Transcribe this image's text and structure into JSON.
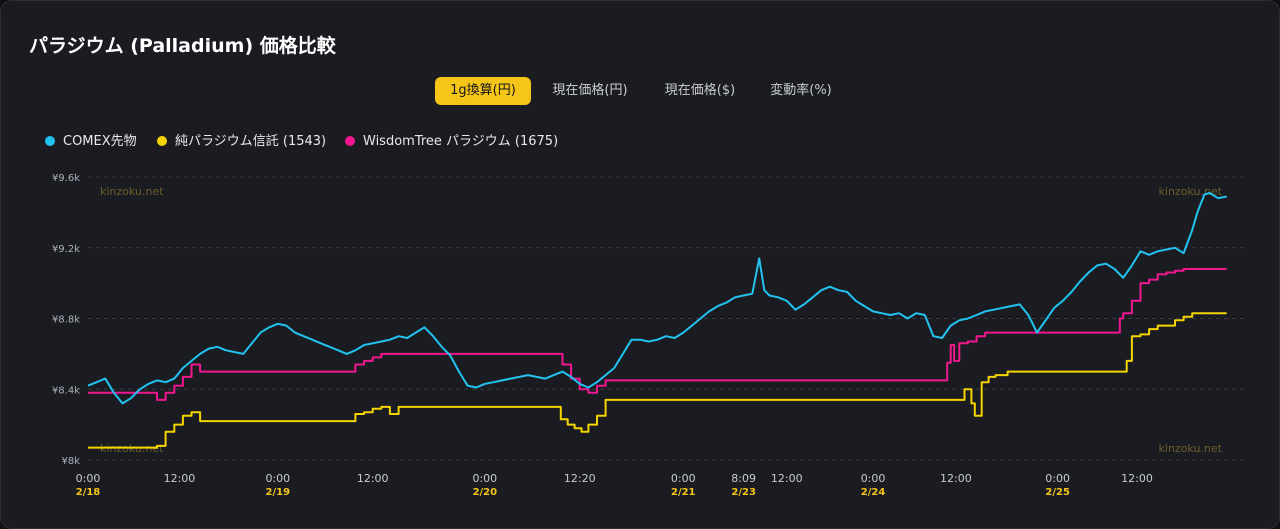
{
  "title": "パラジウム (Palladium) 価格比較",
  "tabs": [
    {
      "label": "1g換算(円)",
      "active": true
    },
    {
      "label": "現在価格(円)",
      "active": false
    },
    {
      "label": "現在価格($)",
      "active": false
    },
    {
      "label": "変動率(%)",
      "active": false
    }
  ],
  "watermark": "kinzoku.net",
  "colors": {
    "accent": "#f5c518",
    "comex": "#22c3f0",
    "trust": "#f5d400",
    "wisdomtree": "#f0178f"
  },
  "chart_data": {
    "type": "line",
    "ylim": [
      8000,
      9600
    ],
    "y_ticks": [
      "¥9.6k",
      "¥9.2k",
      "¥8.8k",
      "¥8.4k",
      "¥8k"
    ],
    "y_tick_values": [
      9600,
      9200,
      8800,
      8400,
      8000
    ],
    "x_ticks": [
      {
        "label": "0:00",
        "date": "2/18"
      },
      {
        "label": "12:00",
        "date": ""
      },
      {
        "label": "0:00",
        "date": "2/19"
      },
      {
        "label": "12:00",
        "date": ""
      },
      {
        "label": "0:00",
        "date": "2/20"
      },
      {
        "label": "12:20",
        "date": ""
      },
      {
        "label": "0:00",
        "date": "2/21"
      },
      {
        "label": "8:09",
        "date": "2/23"
      },
      {
        "label": "12:00",
        "date": ""
      },
      {
        "label": "0:00",
        "date": "2/24"
      },
      {
        "label": "12:00",
        "date": ""
      },
      {
        "label": "0:00",
        "date": "2/25"
      },
      {
        "label": "12:00",
        "date": ""
      }
    ],
    "x_tick_index": [
      0,
      5.3,
      11,
      16.5,
      23,
      28.5,
      34.5,
      38,
      40.5,
      45.5,
      50.3,
      56.2,
      60.8
    ],
    "x_range": [
      0,
      67
    ],
    "series": [
      {
        "name": "COMEX先物",
        "points": [
          [
            0,
            8420
          ],
          [
            0.5,
            8440
          ],
          [
            1,
            8460
          ],
          [
            1.5,
            8380
          ],
          [
            2,
            8320
          ],
          [
            2.5,
            8350
          ],
          [
            3,
            8400
          ],
          [
            3.5,
            8430
          ],
          [
            4,
            8450
          ],
          [
            4.5,
            8440
          ],
          [
            5,
            8460
          ],
          [
            5.5,
            8520
          ],
          [
            6,
            8560
          ],
          [
            6.5,
            8600
          ],
          [
            7,
            8630
          ],
          [
            7.5,
            8640
          ],
          [
            8,
            8620
          ],
          [
            8.5,
            8610
          ],
          [
            9,
            8600
          ],
          [
            9.5,
            8660
          ],
          [
            10,
            8720
          ],
          [
            10.5,
            8750
          ],
          [
            11,
            8770
          ],
          [
            11.5,
            8760
          ],
          [
            12,
            8720
          ],
          [
            12.5,
            8700
          ],
          [
            13,
            8680
          ],
          [
            13.5,
            8660
          ],
          [
            14,
            8640
          ],
          [
            14.5,
            8620
          ],
          [
            15,
            8600
          ],
          [
            15.5,
            8620
          ],
          [
            16,
            8650
          ],
          [
            16.5,
            8660
          ],
          [
            17,
            8670
          ],
          [
            17.5,
            8680
          ],
          [
            18,
            8700
          ],
          [
            18.5,
            8690
          ],
          [
            19,
            8720
          ],
          [
            19.5,
            8750
          ],
          [
            20,
            8700
          ],
          [
            20.5,
            8640
          ],
          [
            21,
            8590
          ],
          [
            21.5,
            8500
          ],
          [
            22,
            8420
          ],
          [
            22.5,
            8410
          ],
          [
            23,
            8430
          ],
          [
            23.5,
            8440
          ],
          [
            24,
            8450
          ],
          [
            24.5,
            8460
          ],
          [
            25,
            8470
          ],
          [
            25.5,
            8480
          ],
          [
            26,
            8470
          ],
          [
            26.5,
            8460
          ],
          [
            27,
            8480
          ],
          [
            27.5,
            8500
          ],
          [
            28,
            8470
          ],
          [
            28.5,
            8430
          ],
          [
            29,
            8410
          ],
          [
            29.5,
            8440
          ],
          [
            30,
            8480
          ],
          [
            30.5,
            8520
          ],
          [
            31,
            8600
          ],
          [
            31.5,
            8680
          ],
          [
            32,
            8680
          ],
          [
            32.5,
            8670
          ],
          [
            33,
            8680
          ],
          [
            33.5,
            8700
          ],
          [
            34,
            8690
          ],
          [
            34.5,
            8720
          ],
          [
            35,
            8760
          ],
          [
            35.5,
            8800
          ],
          [
            36,
            8840
          ],
          [
            36.5,
            8870
          ],
          [
            37,
            8890
          ],
          [
            37.5,
            8920
          ],
          [
            38,
            8930
          ],
          [
            38.5,
            8940
          ],
          [
            38.9,
            9140
          ],
          [
            39.2,
            8960
          ],
          [
            39.5,
            8930
          ],
          [
            40,
            8920
          ],
          [
            40.5,
            8900
          ],
          [
            41,
            8850
          ],
          [
            41.5,
            8880
          ],
          [
            42,
            8920
          ],
          [
            42.5,
            8960
          ],
          [
            43,
            8980
          ],
          [
            43.5,
            8960
          ],
          [
            44,
            8950
          ],
          [
            44.5,
            8900
          ],
          [
            45,
            8870
          ],
          [
            45.5,
            8840
          ],
          [
            46,
            8830
          ],
          [
            46.5,
            8820
          ],
          [
            47,
            8830
          ],
          [
            47.5,
            8800
          ],
          [
            48,
            8830
          ],
          [
            48.5,
            8820
          ],
          [
            49,
            8700
          ],
          [
            49.5,
            8690
          ],
          [
            50,
            8760
          ],
          [
            50.5,
            8790
          ],
          [
            51,
            8800
          ],
          [
            51.5,
            8820
          ],
          [
            52,
            8840
          ],
          [
            52.5,
            8850
          ],
          [
            53,
            8860
          ],
          [
            53.5,
            8870
          ],
          [
            54,
            8880
          ],
          [
            54.5,
            8820
          ],
          [
            55,
            8720
          ],
          [
            55.5,
            8790
          ],
          [
            56,
            8860
          ],
          [
            56.5,
            8900
          ],
          [
            57,
            8950
          ],
          [
            57.5,
            9010
          ],
          [
            58,
            9060
          ],
          [
            58.5,
            9100
          ],
          [
            59,
            9110
          ],
          [
            59.5,
            9080
          ],
          [
            60,
            9030
          ],
          [
            60.5,
            9100
          ],
          [
            61,
            9180
          ],
          [
            61.5,
            9160
          ],
          [
            62,
            9180
          ],
          [
            62.5,
            9190
          ],
          [
            63,
            9200
          ],
          [
            63.5,
            9170
          ],
          [
            64,
            9300
          ],
          [
            64.3,
            9400
          ],
          [
            64.7,
            9500
          ],
          [
            65,
            9510
          ],
          [
            65.5,
            9480
          ],
          [
            66,
            9490
          ]
        ]
      },
      {
        "name": "純パラジウム信託 (1543)",
        "points": [
          [
            0,
            8070
          ],
          [
            3.5,
            8070
          ],
          [
            4,
            8080
          ],
          [
            4.5,
            8160
          ],
          [
            5,
            8200
          ],
          [
            5.5,
            8250
          ],
          [
            6,
            8270
          ],
          [
            6.5,
            8220
          ],
          [
            11,
            8220
          ],
          [
            12,
            8220
          ],
          [
            13,
            8220
          ],
          [
            14,
            8220
          ],
          [
            15,
            8220
          ],
          [
            15.5,
            8260
          ],
          [
            16,
            8270
          ],
          [
            16.5,
            8290
          ],
          [
            17,
            8300
          ],
          [
            17.5,
            8260
          ],
          [
            18,
            8300
          ],
          [
            23,
            8300
          ],
          [
            24,
            8300
          ],
          [
            25,
            8300
          ],
          [
            27,
            8300
          ],
          [
            27.4,
            8230
          ],
          [
            27.8,
            8200
          ],
          [
            28.2,
            8180
          ],
          [
            28.6,
            8160
          ],
          [
            29,
            8200
          ],
          [
            29.5,
            8250
          ],
          [
            30,
            8340
          ],
          [
            33,
            8340
          ],
          [
            36,
            8340
          ],
          [
            39,
            8340
          ],
          [
            42,
            8340
          ],
          [
            45,
            8340
          ],
          [
            48,
            8340
          ],
          [
            50.5,
            8340
          ],
          [
            50.8,
            8400
          ],
          [
            51,
            8400
          ],
          [
            51.2,
            8320
          ],
          [
            51.4,
            8250
          ],
          [
            51.8,
            8440
          ],
          [
            52.2,
            8470
          ],
          [
            52.6,
            8480
          ],
          [
            53,
            8480
          ],
          [
            53.3,
            8500
          ],
          [
            54,
            8500
          ],
          [
            56,
            8500
          ],
          [
            58,
            8500
          ],
          [
            59,
            8500
          ],
          [
            60,
            8500
          ],
          [
            60.2,
            8560
          ],
          [
            60.5,
            8700
          ],
          [
            61,
            8710
          ],
          [
            61.5,
            8740
          ],
          [
            62,
            8760
          ],
          [
            62.5,
            8760
          ],
          [
            63,
            8790
          ],
          [
            63.5,
            8810
          ],
          [
            64,
            8830
          ],
          [
            65,
            8830
          ],
          [
            66,
            8830
          ]
        ]
      },
      {
        "name": "WisdomTree パラジウム (1675)",
        "points": [
          [
            0,
            8380
          ],
          [
            3,
            8380
          ],
          [
            3.5,
            8380
          ],
          [
            4,
            8340
          ],
          [
            4.5,
            8380
          ],
          [
            5,
            8420
          ],
          [
            5.5,
            8470
          ],
          [
            6,
            8540
          ],
          [
            6.5,
            8500
          ],
          [
            11,
            8500
          ],
          [
            12,
            8500
          ],
          [
            13,
            8500
          ],
          [
            14,
            8500
          ],
          [
            15,
            8500
          ],
          [
            15.5,
            8540
          ],
          [
            16,
            8560
          ],
          [
            16.5,
            8580
          ],
          [
            17,
            8600
          ],
          [
            18,
            8600
          ],
          [
            20,
            8600
          ],
          [
            23,
            8600
          ],
          [
            25,
            8600
          ],
          [
            27,
            8600
          ],
          [
            27.5,
            8540
          ],
          [
            28,
            8460
          ],
          [
            28.5,
            8400
          ],
          [
            29,
            8380
          ],
          [
            29.5,
            8420
          ],
          [
            30,
            8450
          ],
          [
            33,
            8450
          ],
          [
            36,
            8450
          ],
          [
            39,
            8450
          ],
          [
            42,
            8450
          ],
          [
            45,
            8450
          ],
          [
            48,
            8450
          ],
          [
            49.5,
            8450
          ],
          [
            49.8,
            8550
          ],
          [
            50,
            8650
          ],
          [
            50.2,
            8560
          ],
          [
            50.5,
            8660
          ],
          [
            51,
            8670
          ],
          [
            51.5,
            8700
          ],
          [
            52,
            8720
          ],
          [
            53,
            8720
          ],
          [
            55,
            8720
          ],
          [
            57,
            8720
          ],
          [
            59,
            8720
          ],
          [
            59.5,
            8720
          ],
          [
            59.8,
            8800
          ],
          [
            60,
            8830
          ],
          [
            60.5,
            8900
          ],
          [
            61,
            9000
          ],
          [
            61.5,
            9020
          ],
          [
            62,
            9050
          ],
          [
            62.5,
            9060
          ],
          [
            63,
            9070
          ],
          [
            63.5,
            9080
          ],
          [
            64,
            9080
          ],
          [
            65,
            9080
          ],
          [
            66,
            9080
          ]
        ]
      }
    ]
  }
}
